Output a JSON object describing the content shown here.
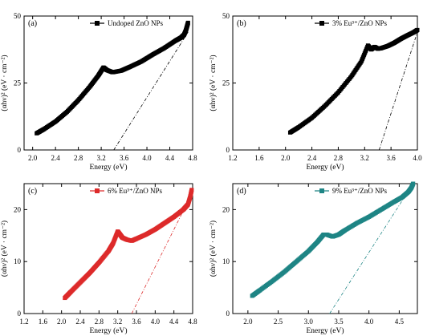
{
  "chart_data": [
    {
      "type": "scatter",
      "panel_label": "(a)",
      "legend": "Undoped ZnO NPs",
      "legend_position": "top-right",
      "xlabel": "Energy (eV)",
      "ylabel": "(αhν)² (eV · cm⁻²)",
      "xlim": [
        1.85,
        4.8
      ],
      "ylim": [
        0,
        50
      ],
      "xticks": [
        "2.0",
        "2.4",
        "2.8",
        "3.2",
        "3.6",
        "4.0",
        "4.4",
        "4.8"
      ],
      "yticks": [
        "0",
        "25",
        "50"
      ],
      "color": "#000000",
      "grid": false,
      "series": [
        {
          "x": [
            2.07,
            2.2,
            2.4,
            2.6,
            2.8,
            3.0,
            3.15,
            3.24,
            3.3,
            3.4,
            3.55,
            3.7,
            3.9,
            4.1,
            4.3,
            4.5,
            4.6,
            4.65,
            4.68,
            4.7,
            4.72
          ],
          "y": [
            6.2,
            7.8,
            10.6,
            14.2,
            18.6,
            23.6,
            27.8,
            30.8,
            29.8,
            29.0,
            29.6,
            31.0,
            33.0,
            35.6,
            38.0,
            40.8,
            42.0,
            43.0,
            44.5,
            46.0,
            47.5
          ]
        }
      ],
      "fit_line": {
        "x": [
          3.42,
          4.72
        ],
        "y": [
          0,
          44
        ]
      }
    },
    {
      "type": "scatter",
      "panel_label": "(b)",
      "legend": "3% Eu³⁺/ZnO NPs",
      "legend_position": "top-right",
      "xlabel": "Energy (eV)",
      "ylabel": "(αhν)² (eV · cm⁻²)",
      "xlim": [
        1.2,
        4.0
      ],
      "ylim": [
        0,
        50
      ],
      "xticks": [
        "1.2",
        "1.6",
        "2.0",
        "2.4",
        "2.8",
        "3.2",
        "3.6",
        "4.0"
      ],
      "yticks": [
        "0",
        "25",
        "50"
      ],
      "color": "#000000",
      "grid": false,
      "series": [
        {
          "x": [
            2.07,
            2.2,
            2.4,
            2.6,
            2.8,
            3.0,
            3.15,
            3.25,
            3.3,
            3.35,
            3.4,
            3.45,
            3.55,
            3.65,
            3.75,
            3.85,
            3.95,
            4.0
          ],
          "y": [
            6.5,
            8.5,
            12.0,
            16.5,
            21.5,
            27.5,
            33.0,
            39.0,
            37.5,
            38.5,
            37.8,
            38.0,
            38.8,
            40.0,
            41.5,
            42.8,
            44.0,
            44.8
          ]
        }
      ],
      "fit_line": {
        "x": [
          3.42,
          4.0
        ],
        "y": [
          0,
          44
        ]
      }
    },
    {
      "type": "scatter",
      "panel_label": "(c)",
      "legend": "6% Eu³⁺/ZnO NPs",
      "legend_position": "top-right",
      "xlabel": "Energy (eV)",
      "ylabel": "(αhν)² (eV · cm⁻²)",
      "xlim": [
        1.2,
        4.8
      ],
      "ylim": [
        0,
        25
      ],
      "xticks": [
        "1.2",
        "1.6",
        "2.0",
        "2.4",
        "2.8",
        "3.2",
        "3.6",
        "4.0",
        "4.4",
        "4.8"
      ],
      "yticks": [
        "0",
        "10",
        "20"
      ],
      "color": "#dd2a2a",
      "grid": false,
      "series": [
        {
          "x": [
            2.07,
            2.2,
            2.4,
            2.6,
            2.8,
            3.0,
            3.1,
            3.2,
            3.25,
            3.3,
            3.4,
            3.5,
            3.6,
            3.8,
            4.0,
            4.2,
            4.4,
            4.6,
            4.7,
            4.75,
            4.78
          ],
          "y": [
            3.0,
            4.2,
            6.0,
            7.8,
            9.8,
            12.0,
            13.5,
            15.8,
            15.2,
            14.6,
            14.2,
            14.0,
            14.4,
            15.2,
            16.2,
            17.4,
            18.6,
            20.0,
            21.0,
            22.5,
            23.8
          ]
        }
      ],
      "fit_line": {
        "x": [
          3.5,
          4.78
        ],
        "y": [
          0,
          23
        ]
      }
    },
    {
      "type": "scatter",
      "panel_label": "(d)",
      "legend": "9% Eu³⁺/ZnO NPs",
      "legend_position": "top-right",
      "xlabel": "Energy (eV)",
      "ylabel": "(αhν)² (eV · cm⁻²)",
      "xlim": [
        1.75,
        4.8
      ],
      "ylim": [
        0,
        25
      ],
      "xticks": [
        "2.0",
        "2.5",
        "3.0",
        "3.5",
        "4.0",
        "4.5"
      ],
      "yticks": [
        "0",
        "10",
        "20"
      ],
      "color": "#1e8585",
      "grid": false,
      "series": [
        {
          "x": [
            2.07,
            2.2,
            2.4,
            2.6,
            2.8,
            3.0,
            3.15,
            3.25,
            3.3,
            3.4,
            3.5,
            3.6,
            3.8,
            4.0,
            4.2,
            4.4,
            4.55,
            4.65,
            4.7,
            4.73
          ],
          "y": [
            3.4,
            4.5,
            6.2,
            8.0,
            10.0,
            12.0,
            13.8,
            15.2,
            15.2,
            14.8,
            15.2,
            16.0,
            17.4,
            18.6,
            20.0,
            21.4,
            22.4,
            23.4,
            24.2,
            25.0
          ]
        }
      ],
      "fit_line": {
        "x": [
          3.35,
          4.73
        ],
        "y": [
          0,
          25
        ]
      }
    }
  ]
}
